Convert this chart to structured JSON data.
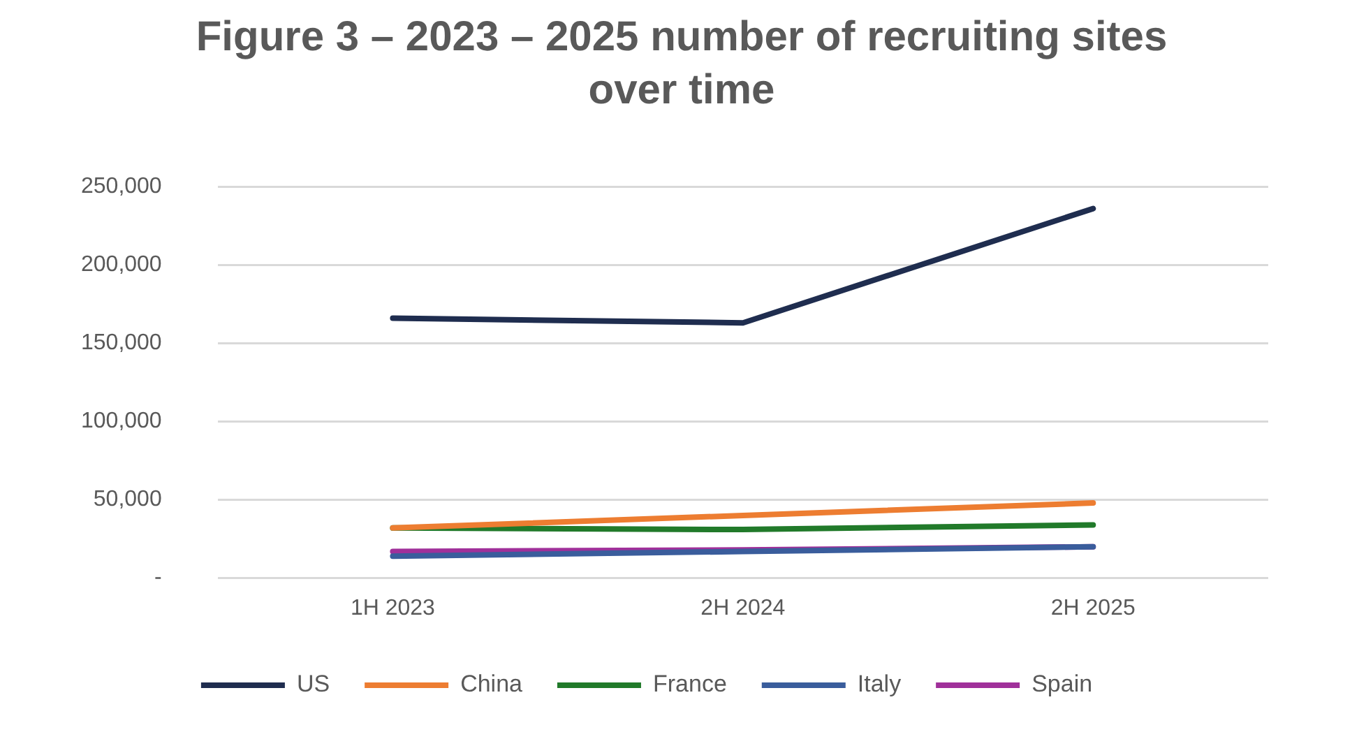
{
  "chart_data": {
    "type": "line",
    "title": "Figure 3 – 2023 – 2025 number of recruiting sites over time",
    "categories": [
      "1H 2023",
      "2H 2024",
      "2H 2025"
    ],
    "series": [
      {
        "name": "US",
        "color": "#1f2d4f",
        "values": [
          166000,
          163000,
          236000
        ]
      },
      {
        "name": "China",
        "color": "#ed7d31",
        "values": [
          32000,
          40000,
          48000
        ]
      },
      {
        "name": "France",
        "color": "#217a2a",
        "values": [
          32000,
          31000,
          34000
        ]
      },
      {
        "name": "Italy",
        "color": "#3a5d9c",
        "values": [
          14000,
          17000,
          20000
        ]
      },
      {
        "name": "Spain",
        "color": "#a0309a",
        "values": [
          17000,
          18000,
          20000
        ]
      }
    ],
    "ylim": [
      0,
      250000
    ],
    "yticks": [
      {
        "value": 0,
        "label": "-"
      },
      {
        "value": 50000,
        "label": "50,000"
      },
      {
        "value": 100000,
        "label": "100,000"
      },
      {
        "value": 150000,
        "label": "150,000"
      },
      {
        "value": 200000,
        "label": "200,000"
      },
      {
        "value": 250000,
        "label": "250,000"
      }
    ],
    "grid": "y",
    "legend": "bottom",
    "marker": "none",
    "line_style": "solid"
  }
}
